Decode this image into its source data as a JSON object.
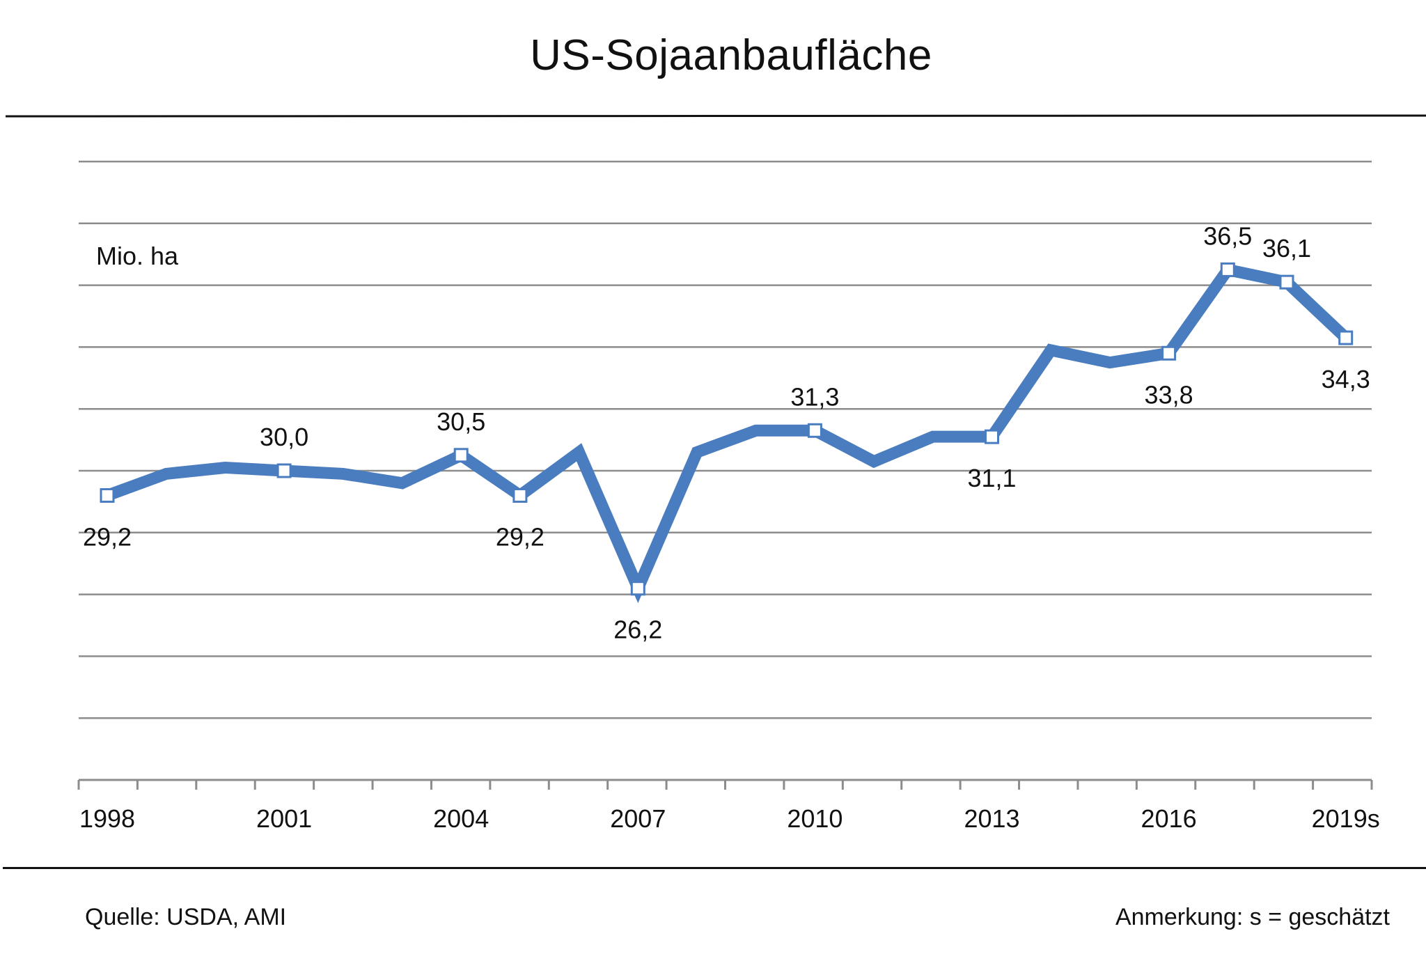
{
  "title": "US-Sojaanbaufläche",
  "footer": {
    "source": "Quelle: USDA, AMI",
    "note": "Anmerkung:  s = geschätzt"
  },
  "colors": {
    "line": "#4a7dbf",
    "grid": "#8c8c8c",
    "axis": "#8c8c8c",
    "marker_fill": "#ffffff"
  },
  "chart_data": {
    "type": "line",
    "title": "US-Sojaanbaufläche",
    "ylabel": "Mio. ha",
    "xlabel": "",
    "grid": true,
    "legend": "none",
    "ylim": [
      20,
      40
    ],
    "x": [
      "1998",
      "1999",
      "2000",
      "2001",
      "2002",
      "2003",
      "2004",
      "2005",
      "2006",
      "2007",
      "2008",
      "2009",
      "2010",
      "2011",
      "2012",
      "2013",
      "2014",
      "2015",
      "2016",
      "2017",
      "2018",
      "2019s"
    ],
    "x_tick_labels": [
      "1998",
      "2001",
      "2004",
      "2007",
      "2010",
      "2013",
      "2016",
      "2019s"
    ],
    "series": [
      {
        "values": [
          29.2,
          29.9,
          30.1,
          30.0,
          29.9,
          29.6,
          30.5,
          29.2,
          30.6,
          26.2,
          30.6,
          31.3,
          31.3,
          30.3,
          31.1,
          31.1,
          33.9,
          33.5,
          33.8,
          36.5,
          36.1,
          34.3
        ],
        "labels": [
          {
            "x": "1998",
            "text": "29,2",
            "pos": "below"
          },
          {
            "x": "2001",
            "text": "30,0",
            "pos": "above"
          },
          {
            "x": "2004",
            "text": "30,5",
            "pos": "above"
          },
          {
            "x": "2005",
            "text": "29,2",
            "pos": "below"
          },
          {
            "x": "2007",
            "text": "26,2",
            "pos": "below"
          },
          {
            "x": "2010",
            "text": "31,3",
            "pos": "above"
          },
          {
            "x": "2013",
            "text": "31,1",
            "pos": "below"
          },
          {
            "x": "2016",
            "text": "33,8",
            "pos": "below"
          },
          {
            "x": "2017",
            "text": "36,5",
            "pos": "above"
          },
          {
            "x": "2018",
            "text": "36,1",
            "pos": "above"
          },
          {
            "x": "2019s",
            "text": "34,3",
            "pos": "below"
          }
        ]
      }
    ]
  }
}
